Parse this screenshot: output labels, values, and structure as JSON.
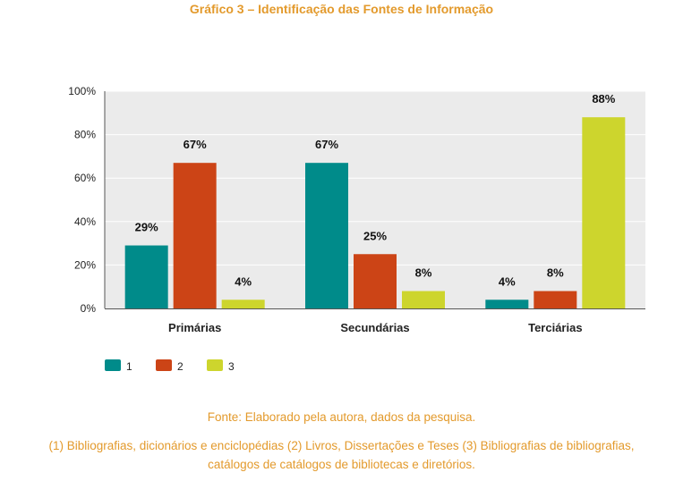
{
  "title": "Gráfico 3 – Identificação das Fontes de Informação",
  "source": "Fonte: Elaborado pela autora, dados da pesquisa.",
  "note_line1": "(1) Bibliografias, dicionários e enciclopédias (2) Livros, Dissertações e Teses (3) Bibliografias de bibliografias,",
  "note_line2": "catálogos de catálogos de bibliotecas e diretórios.",
  "chart_data": {
    "type": "bar",
    "categories": [
      "Primárias",
      "Secundárias",
      "Terciárias"
    ],
    "series": [
      {
        "name": "1",
        "color": "#008b8a",
        "values": [
          29,
          67,
          4
        ]
      },
      {
        "name": "2",
        "color": "#cc4416",
        "values": [
          67,
          25,
          8
        ]
      },
      {
        "name": "3",
        "color": "#cdd52d",
        "values": [
          4,
          8,
          88
        ]
      }
    ],
    "data_labels": [
      "29%",
      "67%",
      "4%",
      "67%",
      "25%",
      "8%",
      "4%",
      "8%",
      "88%"
    ],
    "y_ticks": [
      "0%",
      "20%",
      "40%",
      "60%",
      "80%",
      "100%"
    ],
    "ylim": [
      0,
      100
    ],
    "grid": true,
    "legend_position": "bottom-left",
    "plot_background": "#ebebeb",
    "title_color": "#e39a2c"
  }
}
